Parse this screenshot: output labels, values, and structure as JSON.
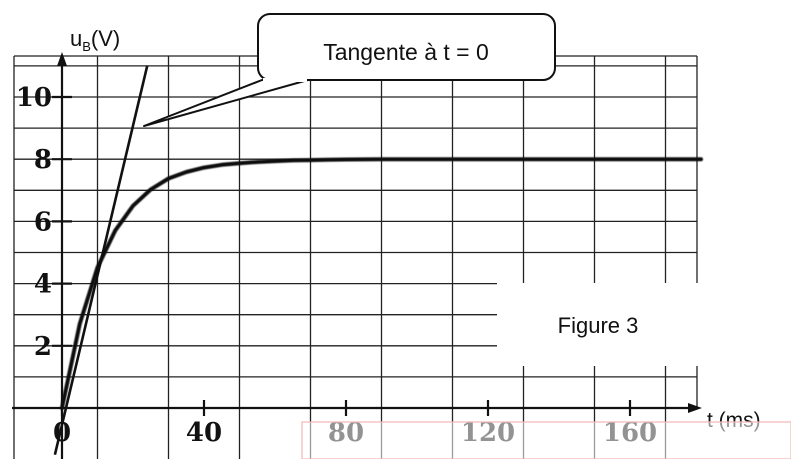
{
  "chart_data": {
    "type": "line",
    "title": "",
    "xlabel": "t (ms)",
    "ylabel_main": "u",
    "ylabel_sub": "B",
    "ylabel_unit": "(V)",
    "xlim": [
      0,
      180
    ],
    "ylim": [
      0,
      11
    ],
    "grid": true,
    "x_ticks": [
      "0",
      "40",
      "80",
      "120",
      "160"
    ],
    "y_ticks": [
      "2",
      "4",
      "6",
      "8",
      "10"
    ],
    "y_tick_values": [
      2,
      4,
      6,
      8,
      10
    ],
    "x_tick_values": [
      0,
      40,
      80,
      120,
      160
    ],
    "series": [
      {
        "x": [
          0,
          5,
          10,
          15,
          20,
          25,
          30,
          35,
          40,
          45,
          50,
          55,
          60,
          65,
          70,
          75,
          80,
          90,
          100,
          110,
          120,
          130,
          140,
          150,
          160,
          170,
          180
        ],
        "y": [
          0,
          2.71,
          4.52,
          5.71,
          6.5,
          7.03,
          7.38,
          7.59,
          7.73,
          7.82,
          7.87,
          7.91,
          7.94,
          7.96,
          7.97,
          7.98,
          7.99,
          8.0,
          8.0,
          8.0,
          8.0,
          8.0,
          8.0,
          8.0,
          8.0,
          8.0,
          8.0
        ]
      }
    ],
    "tangent": {
      "label": "Tangente à t = 0",
      "x": [
        -2,
        24
      ],
      "y": [
        -1.5,
        11
      ]
    },
    "annotations": [
      {
        "text": "Figure 3"
      }
    ]
  }
}
